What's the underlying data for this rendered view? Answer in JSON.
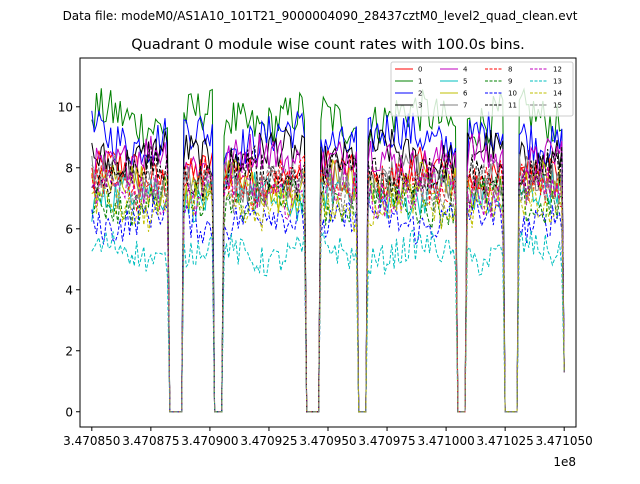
{
  "chart_data": {
    "type": "line",
    "suptitle": "Data file: modeM0/AS1A10_101T21_9000004090_28437cztM0_level2_quad_clean.evt",
    "title": "Quadrant 0 module wise count rates with 100.0s bins.",
    "xlabel": "",
    "ylabel": "",
    "x_offset_label": "1e8",
    "xlim": [
      3.470845,
      3.471055
    ],
    "ylim": [
      -0.5,
      11.6
    ],
    "xticks": [
      3.47085,
      3.470875,
      3.4709,
      3.470925,
      3.47095,
      3.470975,
      3.471,
      3.471025,
      3.47105
    ],
    "xtick_labels": [
      "3.470850",
      "3.470875",
      "3.470900",
      "3.470925",
      "3.470950",
      "3.470975",
      "3.471000",
      "3.471025",
      "3.471050"
    ],
    "yticks": [
      0,
      2,
      4,
      6,
      8,
      10
    ],
    "ytick_labels": [
      "0",
      "2",
      "4",
      "6",
      "8",
      "10"
    ],
    "x_range": [
      3.47085,
      3.47105
    ],
    "gaps": [
      [
        3.470883,
        3.470888
      ],
      [
        3.470902,
        3.470905
      ],
      [
        3.470941,
        3.470946
      ],
      [
        3.470963,
        3.470966
      ],
      [
        3.471004,
        3.471008
      ],
      [
        3.471025,
        3.47103
      ]
    ],
    "legend": {
      "position": "upper-right",
      "columns": 4
    },
    "series": [
      {
        "name": "0",
        "color": "#ff0000",
        "dash": false,
        "level": 7.8
      },
      {
        "name": "1",
        "color": "#008000",
        "dash": false,
        "level": 9.6
      },
      {
        "name": "2",
        "color": "#0000ff",
        "dash": false,
        "level": 9.0
      },
      {
        "name": "3",
        "color": "#000000",
        "dash": false,
        "level": 8.4
      },
      {
        "name": "4",
        "color": "#bf00bf",
        "dash": false,
        "level": 8.3
      },
      {
        "name": "5",
        "color": "#00bfbf",
        "dash": false,
        "level": 7.1
      },
      {
        "name": "6",
        "color": "#bfbf00",
        "dash": false,
        "level": 7.4
      },
      {
        "name": "7",
        "color": "#808080",
        "dash": false,
        "level": 7.6
      },
      {
        "name": "8",
        "color": "#ff0000",
        "dash": true,
        "level": 7.5
      },
      {
        "name": "9",
        "color": "#008000",
        "dash": true,
        "level": 6.9
      },
      {
        "name": "10",
        "color": "#0000ff",
        "dash": true,
        "level": 6.3
      },
      {
        "name": "11",
        "color": "#000000",
        "dash": true,
        "level": 7.8
      },
      {
        "name": "12",
        "color": "#bf00bf",
        "dash": true,
        "level": 7.2
      },
      {
        "name": "13",
        "color": "#00bfbf",
        "dash": true,
        "level": 5.2
      },
      {
        "name": "14",
        "color": "#bfbf00",
        "dash": true,
        "level": 6.7
      },
      {
        "name": "15",
        "color": "#808080",
        "dash": true,
        "level": 7.4
      }
    ]
  }
}
